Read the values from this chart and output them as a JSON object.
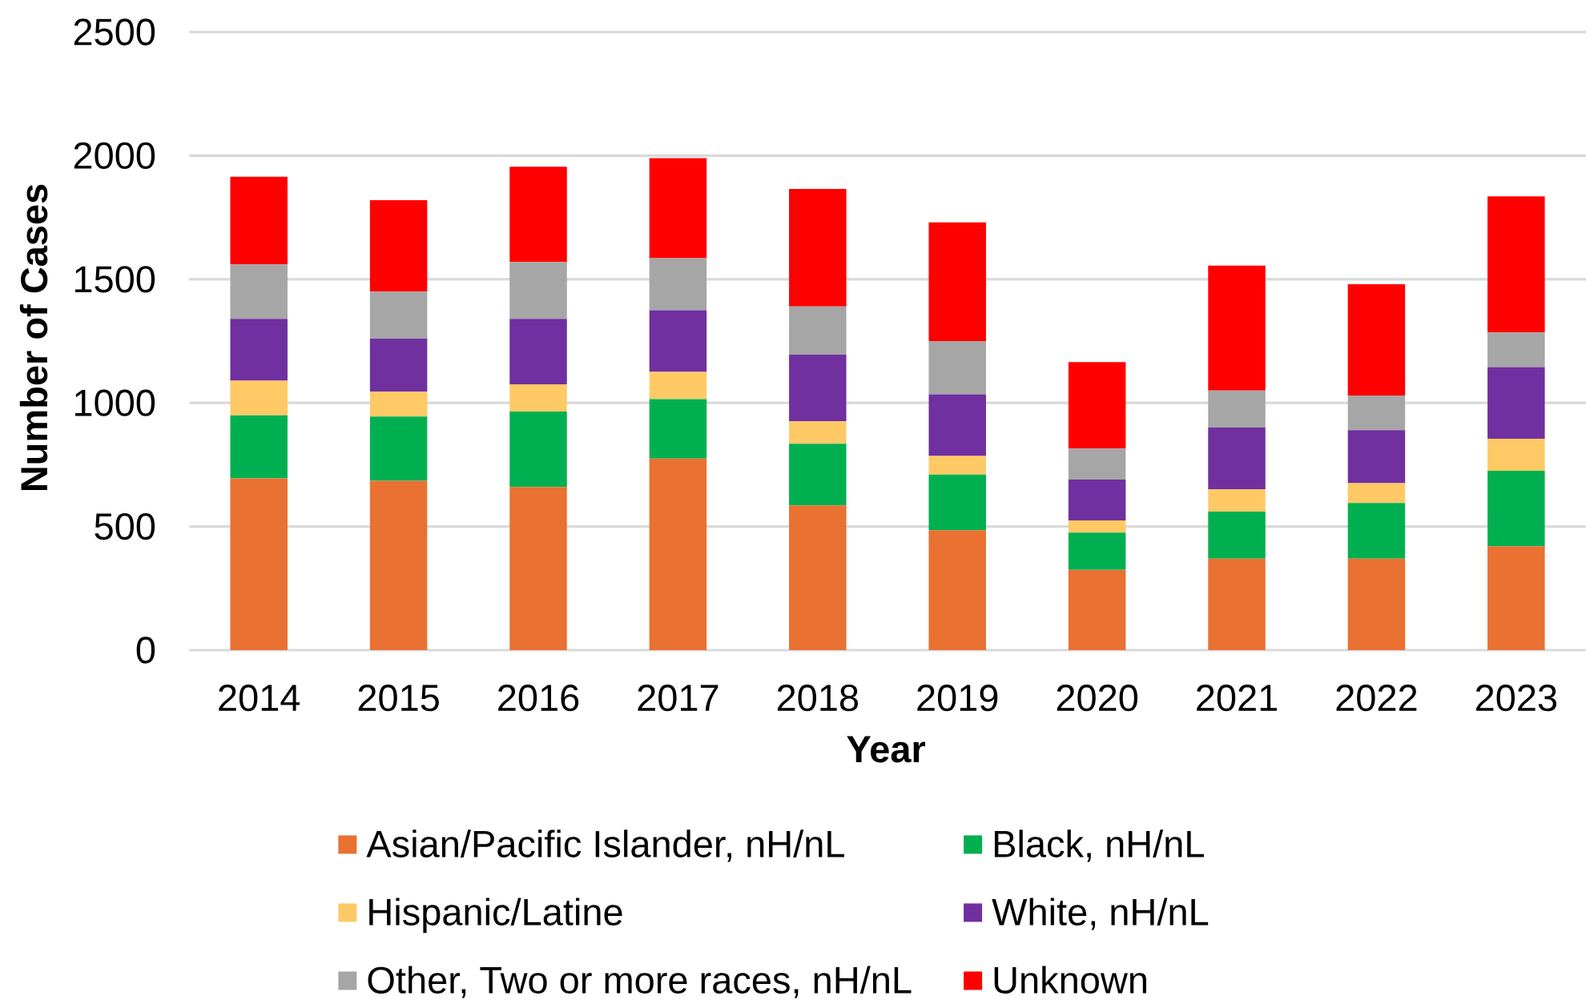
{
  "chart_data": {
    "type": "bar",
    "stacked": true,
    "xlabel": "Year",
    "ylabel": "Number of Cases",
    "categories": [
      "2014",
      "2015",
      "2016",
      "2017",
      "2018",
      "2019",
      "2020",
      "2021",
      "2022",
      "2023"
    ],
    "series": [
      {
        "name": "Asian/Pacific Islander, nH/nL",
        "color": "#e97132",
        "values": [
          695,
          685,
          660,
          775,
          585,
          485,
          325,
          370,
          370,
          420
        ]
      },
      {
        "name": "Black, nH/nL",
        "color": "#00b050",
        "values": [
          255,
          260,
          305,
          240,
          250,
          225,
          150,
          190,
          225,
          305
        ]
      },
      {
        "name": "Hispanic/Latine",
        "color": "#ffc966",
        "values": [
          140,
          100,
          110,
          110,
          90,
          75,
          50,
          90,
          80,
          130
        ]
      },
      {
        "name": "White, nH/nL",
        "color": "#7030a0",
        "values": [
          250,
          215,
          265,
          250,
          270,
          250,
          165,
          250,
          215,
          290
        ]
      },
      {
        "name": "Other, Two or more races, nH/nL",
        "color": "#a6a6a6",
        "values": [
          220,
          190,
          230,
          210,
          195,
          215,
          125,
          150,
          140,
          140
        ]
      },
      {
        "name": "Unknown",
        "color": "#ff0000",
        "values": [
          355,
          370,
          385,
          405,
          475,
          480,
          350,
          505,
          450,
          550
        ]
      }
    ],
    "ylim": [
      0,
      2500
    ],
    "yticks": [
      0,
      500,
      1000,
      1500,
      2000,
      2500
    ],
    "grid": "y",
    "legend": "bottom"
  }
}
